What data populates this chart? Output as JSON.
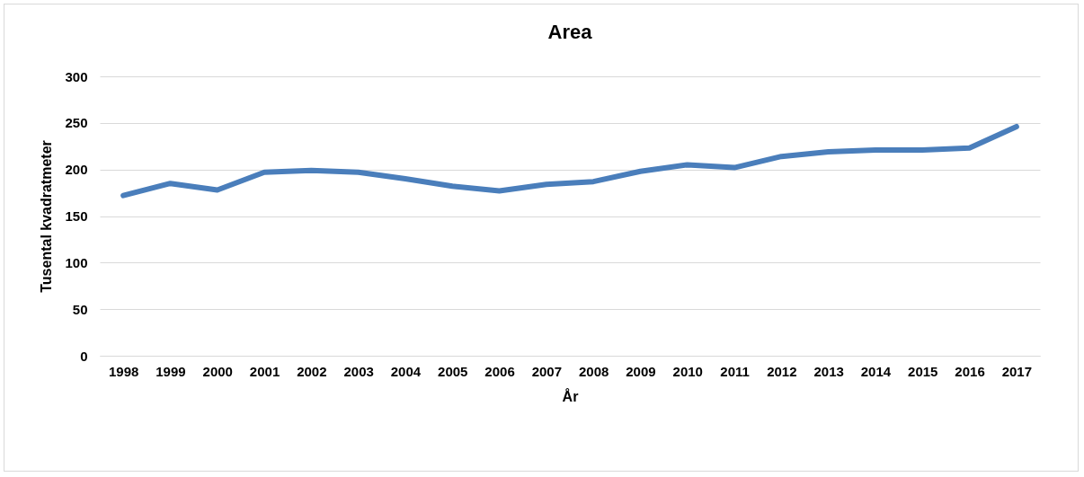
{
  "chart_data": {
    "type": "line",
    "title": "Area",
    "xlabel": "År",
    "ylabel": "Tusental kvadratmeter",
    "categories": [
      "1998",
      "1999",
      "2000",
      "2001",
      "2002",
      "2003",
      "2004",
      "2005",
      "2006",
      "2007",
      "2008",
      "2009",
      "2010",
      "2011",
      "2012",
      "2013",
      "2014",
      "2015",
      "2016",
      "2017"
    ],
    "series": [
      {
        "color": "#4a7ebb",
        "values": [
          172,
          185,
          178,
          197,
          199,
          197,
          190,
          182,
          177,
          184,
          187,
          198,
          205,
          202,
          214,
          219,
          221,
          221,
          223,
          246
        ]
      }
    ],
    "ylim": [
      0,
      300
    ],
    "yticks": [
      0,
      50,
      100,
      150,
      200,
      250,
      300
    ],
    "grid": "y",
    "legend": false,
    "marker": "none",
    "line_style": "solid"
  }
}
